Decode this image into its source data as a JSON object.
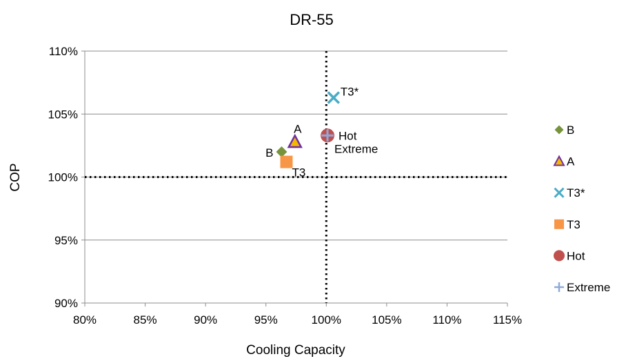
{
  "chart_data": {
    "type": "scatter",
    "title": "DR-55",
    "xlabel": "Cooling Capacity",
    "ylabel": "COP",
    "xlim": [
      80,
      115
    ],
    "ylim": [
      90,
      110
    ],
    "x_ticks": [
      "80%",
      "85%",
      "90%",
      "95%",
      "100%",
      "105%",
      "110%",
      "115%"
    ],
    "y_ticks": [
      "90%",
      "95%",
      "100%",
      "105%",
      "110%"
    ],
    "x_tick_values": [
      80,
      85,
      90,
      95,
      100,
      105,
      110,
      115
    ],
    "y_tick_values": [
      90,
      95,
      100,
      105,
      110
    ],
    "grid": "horizontal",
    "reference_lines": {
      "x": 100,
      "y": 100,
      "style": "dotted"
    },
    "legend": "right",
    "series": [
      {
        "name": "B",
        "marker": "diamond",
        "color": "#77933C",
        "x": 96.3,
        "y": 102.0,
        "label": "B"
      },
      {
        "name": "A",
        "marker": "triangle",
        "color": "#F5B800",
        "edge": "#7030A0",
        "x": 97.4,
        "y": 102.8,
        "label": "A"
      },
      {
        "name": "T3*",
        "marker": "x",
        "color": "#4BACC6",
        "x": 100.6,
        "y": 106.3,
        "label": "T3*"
      },
      {
        "name": "T3",
        "marker": "square",
        "color": "#F79646",
        "x": 96.7,
        "y": 101.2,
        "label": "T3"
      },
      {
        "name": "Hot",
        "marker": "circle",
        "color": "#C0504D",
        "x": 100.1,
        "y": 103.3,
        "label": "Hot"
      },
      {
        "name": "Extreme",
        "marker": "plus",
        "color": "#8EA9DB",
        "x": 100.1,
        "y": 103.3,
        "label": "Extreme"
      }
    ]
  }
}
